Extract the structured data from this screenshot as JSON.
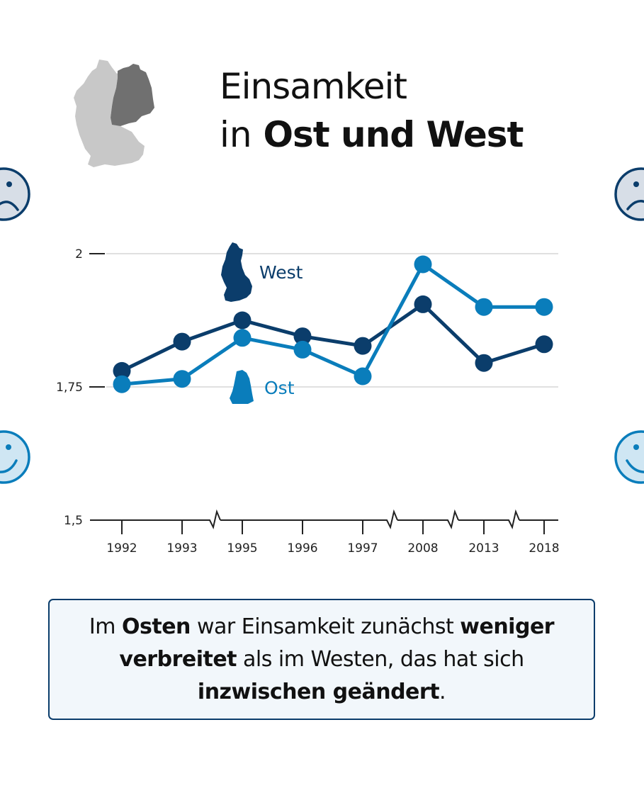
{
  "title": {
    "line1": "Einsamkeit",
    "line2_prefix": "in ",
    "line2_bold": "Ost und West"
  },
  "map_icon": {
    "name": "germany-map-icon",
    "west_color": "#c8c8c8",
    "east_color": "#707070"
  },
  "legend": {
    "west": {
      "label": "West",
      "color": "#0b3d6b"
    },
    "ost": {
      "label": "Ost",
      "color": "#0a7dbb"
    }
  },
  "side_icons": {
    "sad_faces": {
      "fill": "#d7dee7",
      "stroke": "#0b3d6b"
    },
    "happy_faces": {
      "fill": "#cfe6f3",
      "stroke": "#0a7dbb"
    }
  },
  "summary": {
    "p1": "Im ",
    "b1": "Osten",
    "p2": " war Einsamkeit zunächst ",
    "b2": "weniger verbreitet",
    "p3": " als im Westen, das hat sich ",
    "b3": "inzwischen geändert",
    "p4": "."
  },
  "chart_data": {
    "type": "line",
    "title": "Einsamkeit in Ost und West",
    "xlabel": "",
    "ylabel": "",
    "categories": [
      "1992",
      "1993",
      "1995",
      "1996",
      "1997",
      "2008",
      "2013",
      "2018"
    ],
    "series": [
      {
        "name": "West",
        "color": "#0b3d6b",
        "values": [
          1.78,
          1.835,
          1.875,
          1.845,
          1.827,
          1.905,
          1.795,
          1.83
        ]
      },
      {
        "name": "Ost",
        "color": "#0a7dbb",
        "values": [
          1.755,
          1.765,
          1.842,
          1.82,
          1.77,
          1.98,
          1.9,
          1.9
        ]
      }
    ],
    "yticks": [
      "1,5",
      "1,75",
      "2"
    ],
    "ytick_values": [
      1.5,
      1.75,
      2.0
    ],
    "ylim": [
      1.5,
      2.0
    ],
    "axis_breaks_after": [
      "1993",
      "1997",
      "2008",
      "2013"
    ],
    "grid": true,
    "legend_position": "inline labels with map silhouettes (West above, Ost below)"
  }
}
